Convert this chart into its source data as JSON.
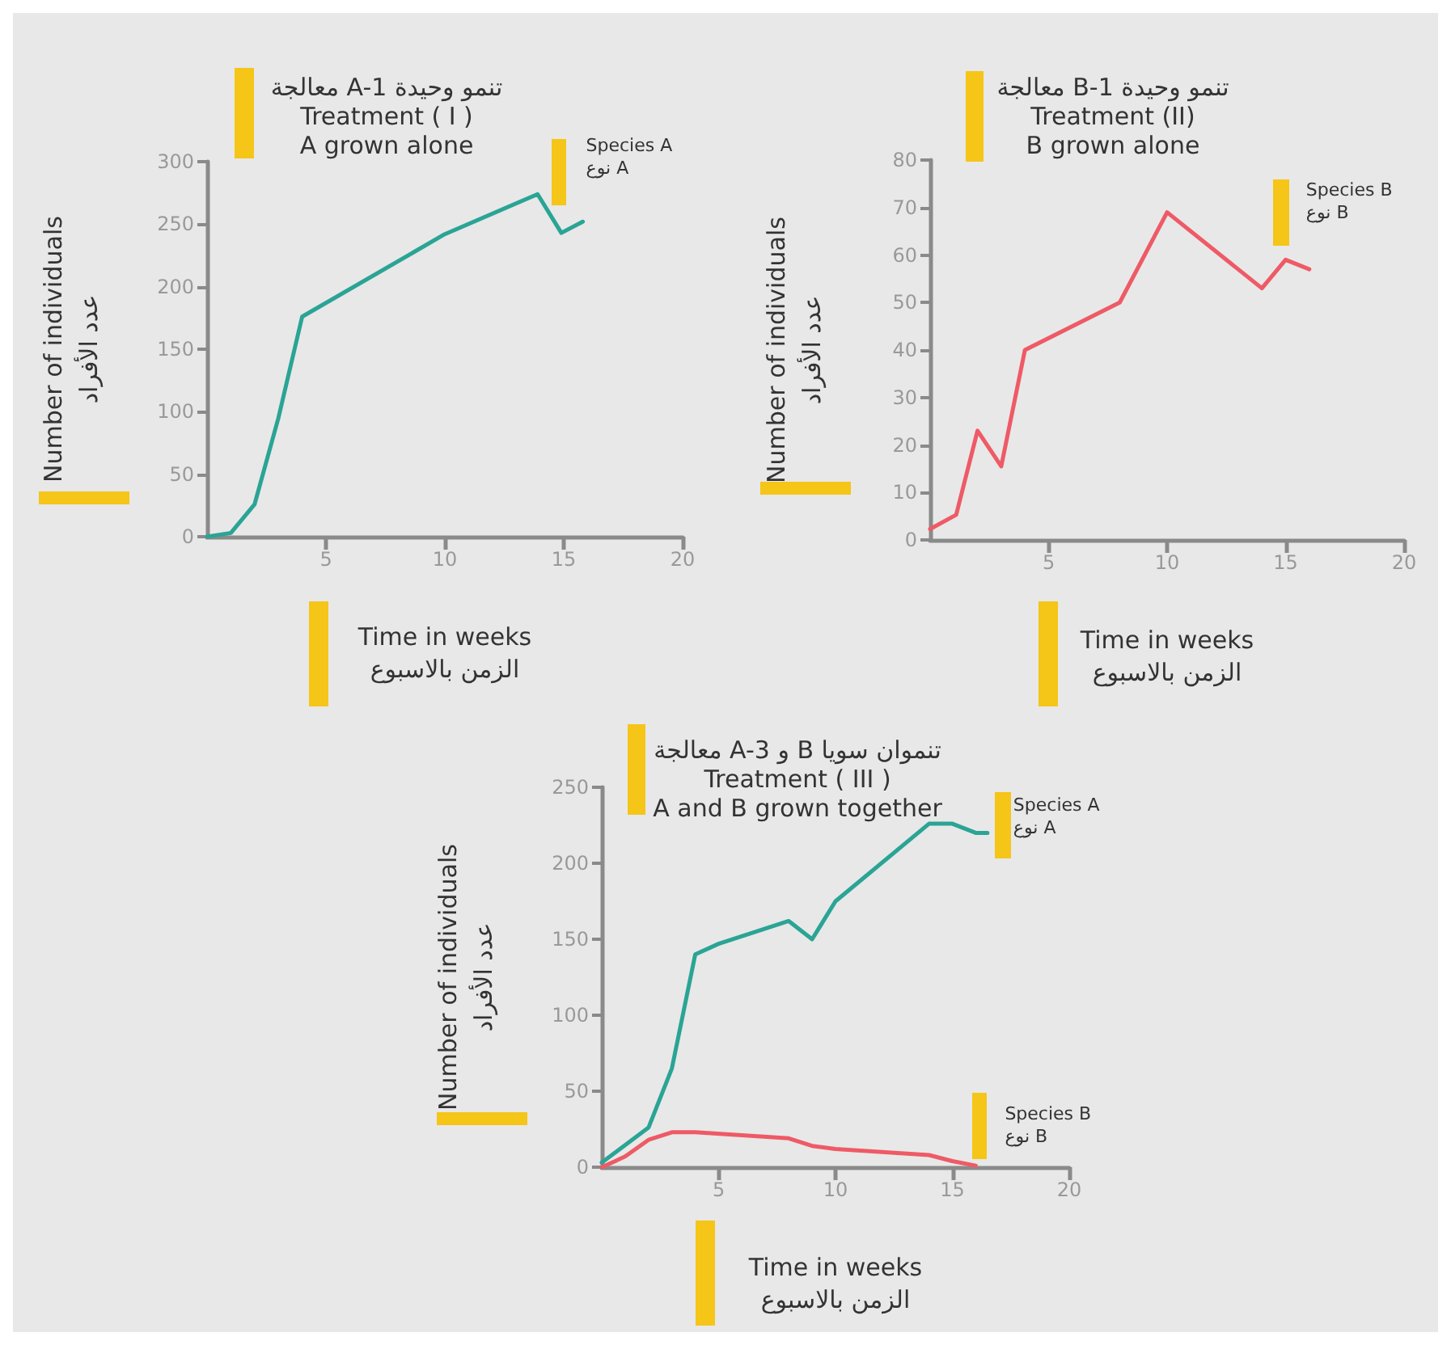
{
  "chart_data": [
    {
      "type": "line",
      "title": "معالجة A-1 تنمو وحيدة\nTreatment ( I )\nA grown alone",
      "xlabel": "Time in weeks\nالزمن بالاسبوع",
      "ylabel": "Number of individuals\nعدد الأفراد",
      "xlim": [
        0,
        20
      ],
      "xticks": [
        5,
        10,
        15,
        20
      ],
      "ylim": [
        0,
        300
      ],
      "yticks": [
        0,
        50,
        100,
        150,
        200,
        250,
        300
      ],
      "grid": false,
      "legend": false,
      "marker": "none",
      "series": [
        {
          "name": "Species A\nنوع A",
          "color": "#2aa495",
          "x": [
            0,
            1,
            2,
            3,
            4,
            10,
            13.9,
            14.9,
            15.8
          ],
          "values": [
            0,
            3,
            26,
            95,
            176,
            242,
            274,
            243,
            252
          ]
        }
      ]
    },
    {
      "type": "line",
      "title": "معالجة B-1 تنمو وحيدة\nTreatment (II)\nB grown alone",
      "xlabel": "Time in weeks\nالزمن بالاسبوع",
      "ylabel": "Number of individuals\nعدد الأفراد",
      "xlim": [
        0,
        20
      ],
      "xticks": [
        5,
        10,
        15,
        20
      ],
      "ylim": [
        0,
        80
      ],
      "yticks": [
        0,
        10,
        20,
        30,
        40,
        50,
        60,
        70,
        80
      ],
      "grid": false,
      "legend": false,
      "marker": "none",
      "series": [
        {
          "name": "Species B\nنوع B",
          "color": "#ee5a66",
          "x": [
            0,
            1.1,
            2,
            3,
            4,
            8,
            10,
            14,
            15,
            16
          ],
          "values": [
            2.3,
            5.3,
            23,
            15.5,
            40,
            50,
            69,
            53,
            59,
            57
          ]
        }
      ]
    },
    {
      "type": "line",
      "title": "معالجة A-3 و B تنموان سويا\nTreatment ( III )\nA and B grown together",
      "xlabel": "Time in weeks\nالزمن بالاسبوع",
      "ylabel": "Number of individuals\nعدد الأفراد",
      "xlim": [
        0,
        20
      ],
      "xticks": [
        5,
        10,
        15,
        20
      ],
      "ylim": [
        0,
        250
      ],
      "yticks": [
        0,
        50,
        100,
        150,
        200,
        250
      ],
      "grid": false,
      "legend": false,
      "marker": "none",
      "series": [
        {
          "name": "Species A\nنوع A",
          "color": "#2aa495",
          "x": [
            0,
            2,
            3,
            4,
            5,
            8,
            9,
            10,
            14,
            15,
            16,
            16.5
          ],
          "values": [
            3,
            26,
            65,
            140,
            147,
            162,
            150,
            175,
            226,
            226,
            220,
            220
          ]
        },
        {
          "name": "Species B\nنوع B",
          "color": "#ee5a66",
          "x": [
            0,
            1,
            2,
            3,
            4,
            6,
            8,
            9,
            10,
            14,
            15,
            16
          ],
          "values": [
            0,
            7,
            18,
            23,
            23,
            21,
            19,
            14,
            12,
            8,
            4,
            1
          ]
        }
      ]
    }
  ]
}
